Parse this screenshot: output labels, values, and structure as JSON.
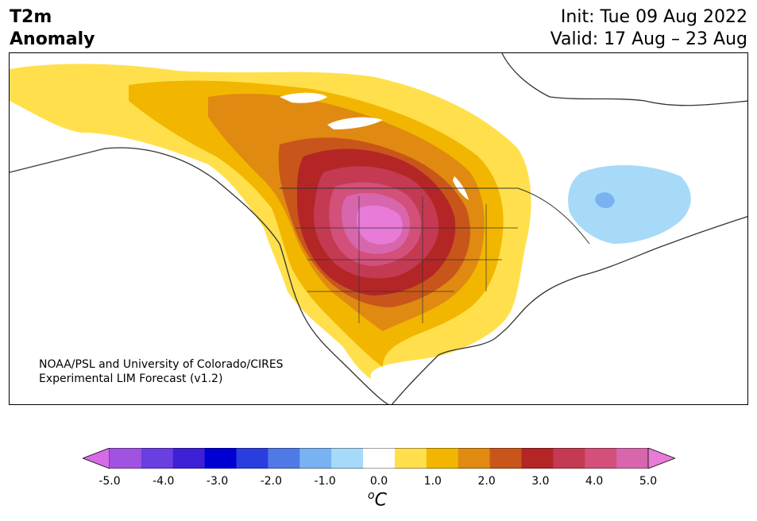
{
  "header": {
    "variable": "T2m",
    "quantity": "Anomaly",
    "init_label": "Init: Tue 09 Aug 2022",
    "valid_label": "Valid: 17 Aug – 23 Aug"
  },
  "credit": {
    "line1": "NOAA/PSL and University of Colorado/CIRES",
    "line2": "Experimental LIM Forecast (v1.2)"
  },
  "colorbar": {
    "colors": [
      "#d66be8",
      "#a052e0",
      "#6a3ee0",
      "#3e20d6",
      "#0000d2",
      "#2a3ee0",
      "#4f7ae6",
      "#78b2f2",
      "#a6daf8",
      "#ffffff",
      "#ffe04c",
      "#f2b600",
      "#e08a12",
      "#c8561a",
      "#b42626",
      "#c43a52",
      "#d2507a",
      "#d866ac",
      "#e87ad8"
    ],
    "ticks": [
      "-5.0",
      "-4.0",
      "-3.0",
      "-2.0",
      "-1.0",
      "0.0",
      "1.0",
      "2.0",
      "3.0",
      "4.0",
      "5.0"
    ],
    "unit_symbol": "o",
    "unit_letter": "C"
  },
  "map": {
    "region": "North America",
    "field": "2 m temperature anomaly"
  }
}
